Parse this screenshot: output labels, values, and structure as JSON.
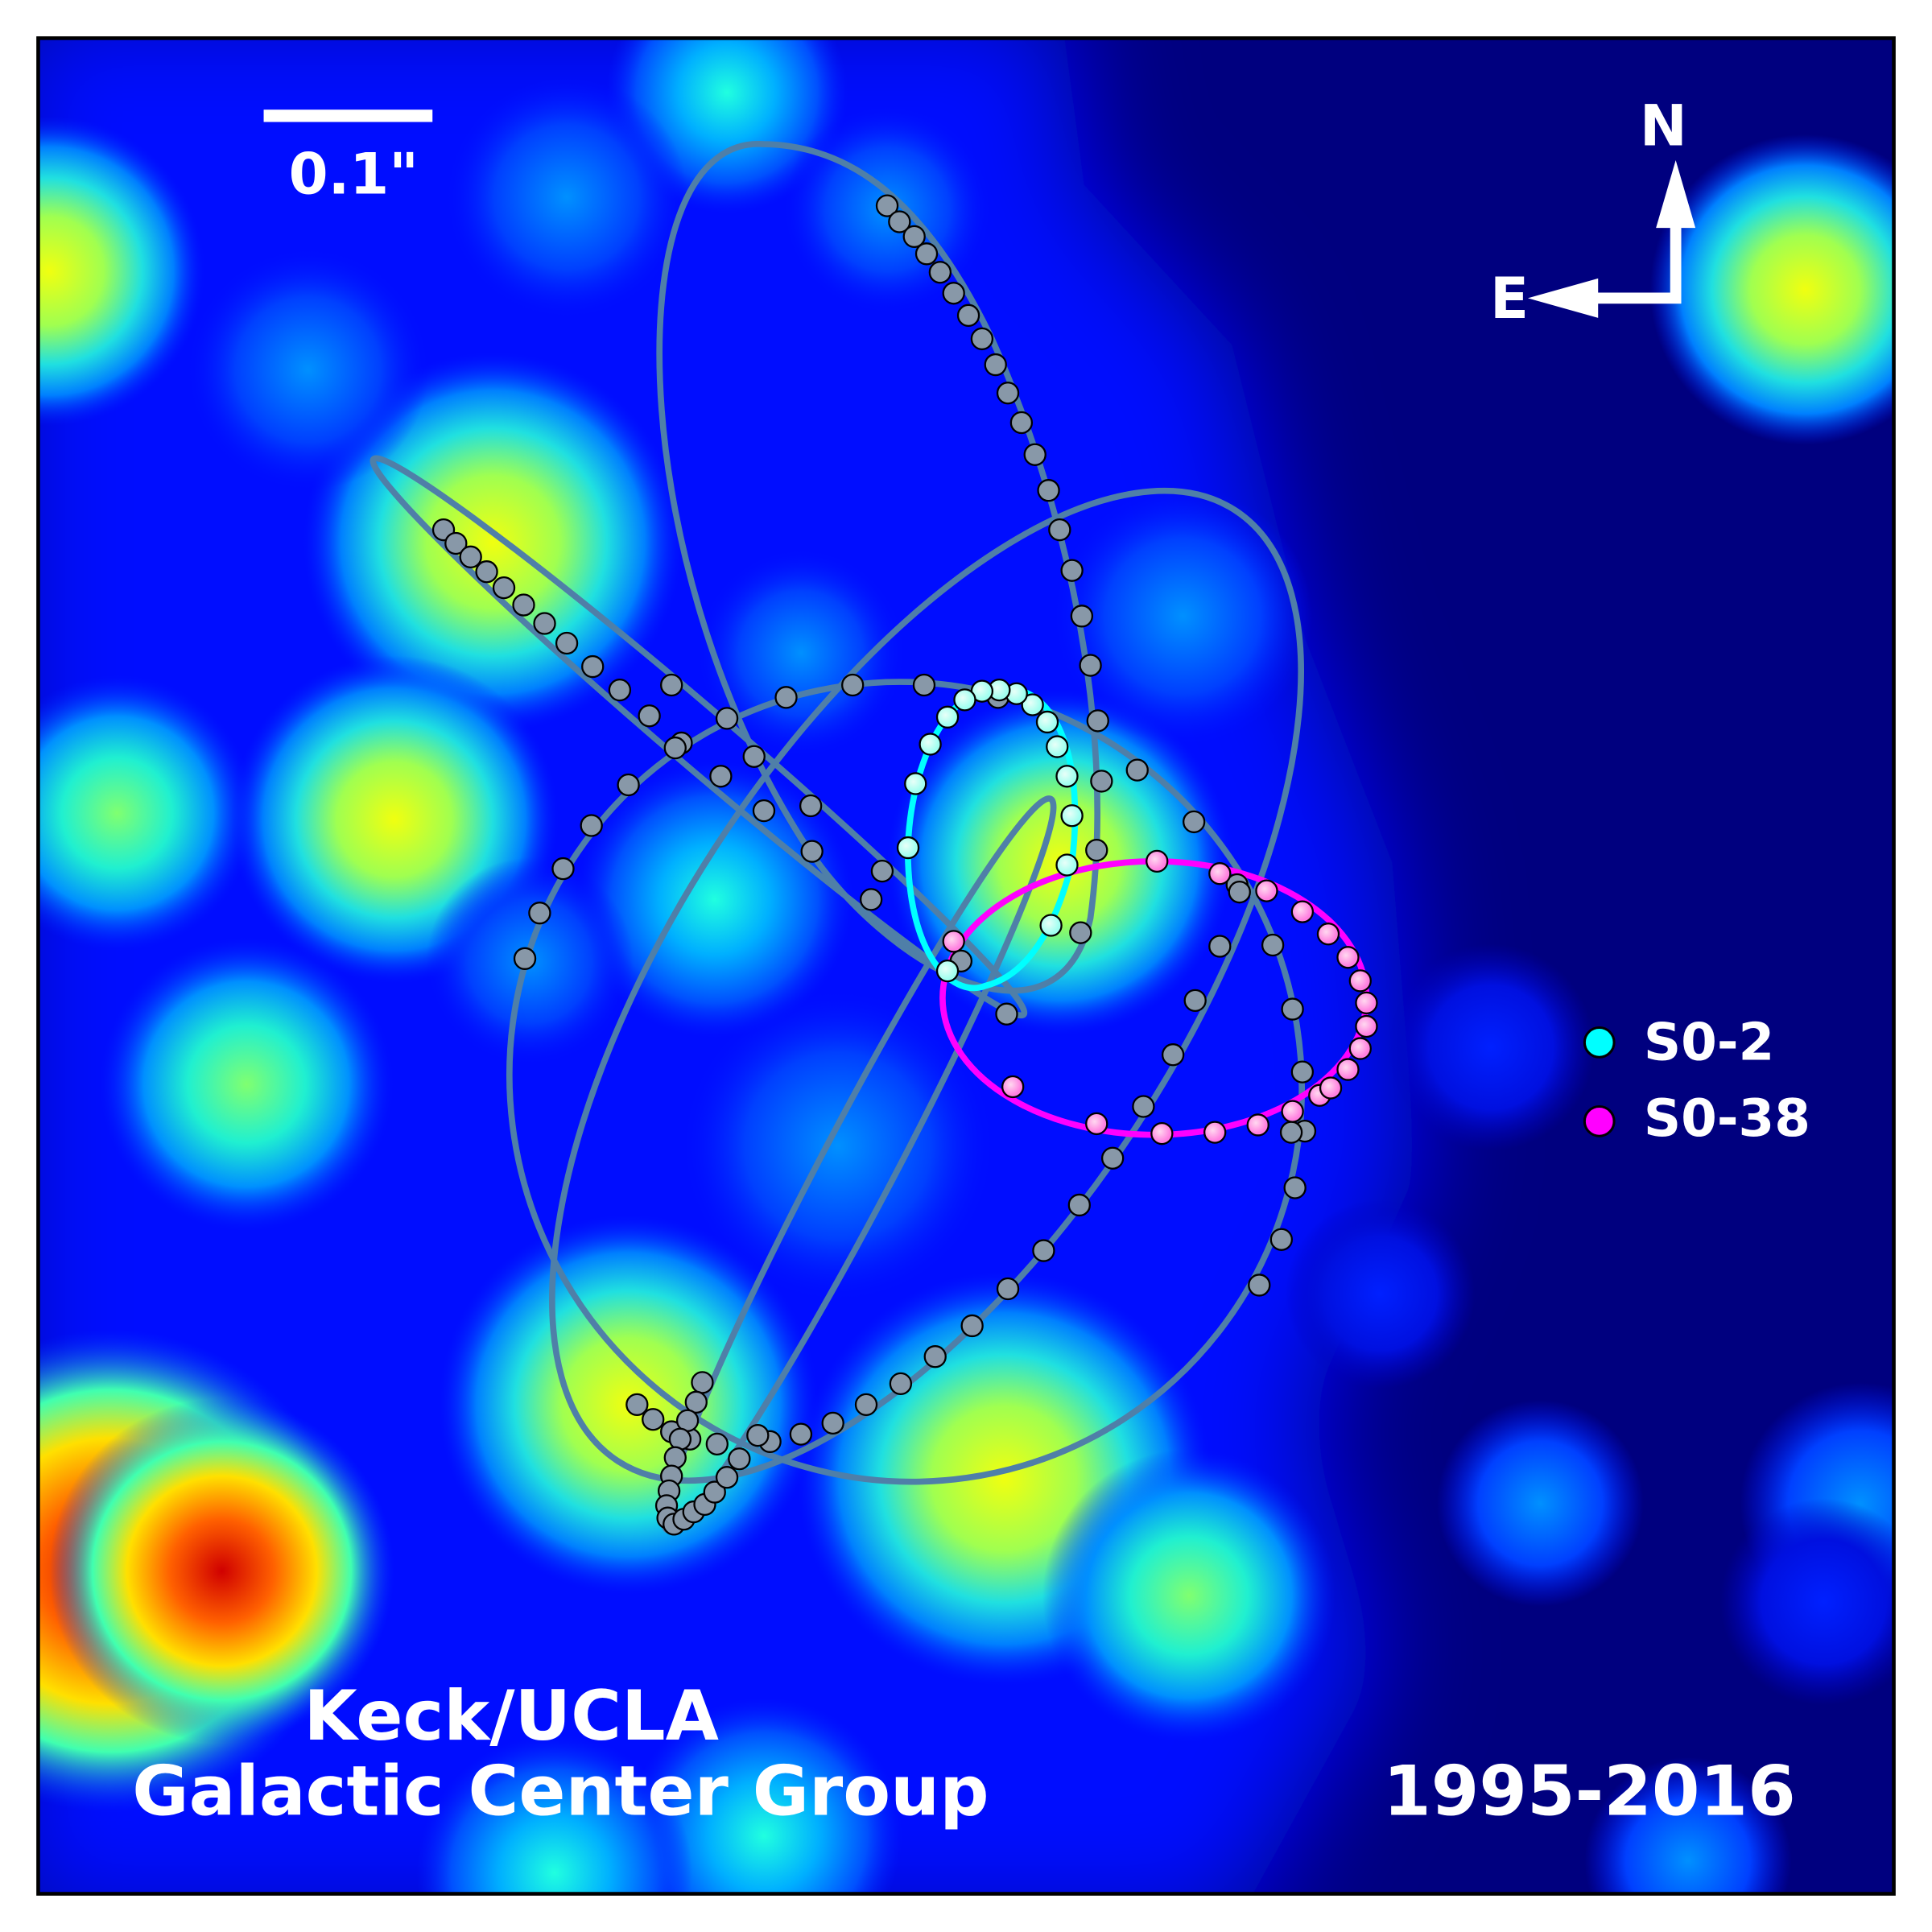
{
  "scale_bar": {
    "label": "0.1\""
  },
  "compass": {
    "north": "N",
    "east": "E"
  },
  "legend": [
    {
      "label": "S0-2",
      "color": "#00ffff"
    },
    {
      "label": "S0-38",
      "color": "#ff00ff"
    }
  ],
  "credit": {
    "line1": "Keck/UCLA",
    "line2": "Galactic Center Group"
  },
  "date_range": "1995-2016",
  "colors": {
    "background": "#00007f",
    "orbit": "#4f7fa8",
    "point": "#8898a8",
    "s02": "#00ffff",
    "s038": "#ff00ff"
  }
}
